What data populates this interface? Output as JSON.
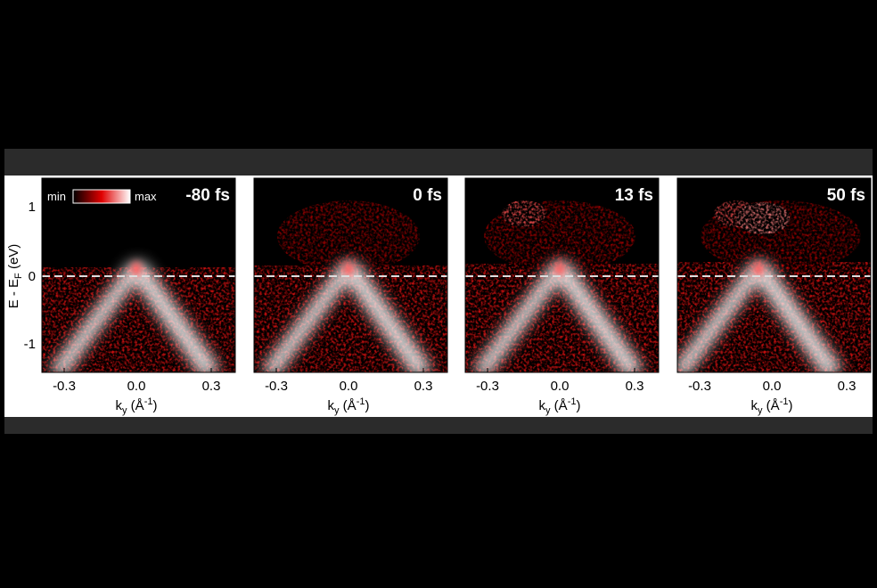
{
  "colorbar": {
    "min": "min",
    "max": "max"
  },
  "y_axis": {
    "label": "E - E",
    "sub": "F",
    "unit": " (eV)",
    "ticks": [
      "1",
      "0",
      "-1"
    ]
  },
  "x_axis": {
    "label": "k",
    "sub": "y",
    "unit": " (Å",
    "sup": "-1",
    "close": ")",
    "ticks": [
      "-0.3",
      "0.0",
      "0.3"
    ]
  },
  "panels": [
    {
      "label": "-80 fs"
    },
    {
      "label": "0 fs"
    },
    {
      "label": "13 fs"
    },
    {
      "label": "50 fs"
    }
  ]
}
